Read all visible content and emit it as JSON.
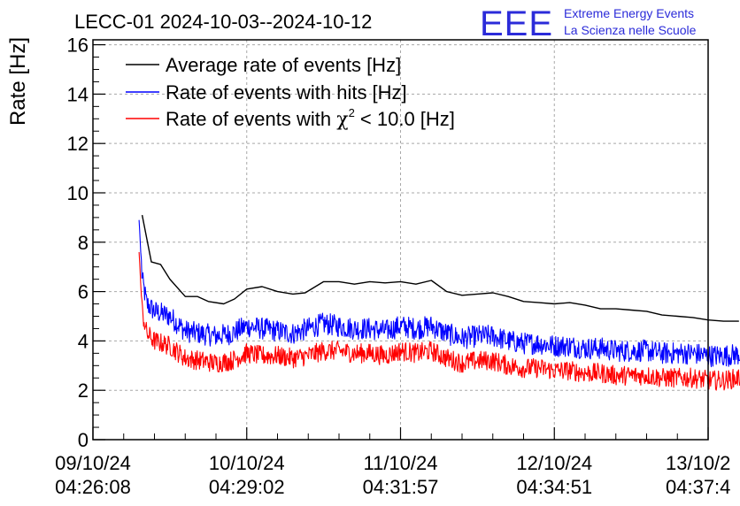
{
  "chart_data": {
    "type": "line",
    "title": "LECC-01 2024-10-03--2024-10-12",
    "logo": {
      "letters": "EEE",
      "line1": "Extreme Energy Events",
      "line2": "La Scienza nelle Scuole"
    },
    "ylabel": "Rate [Hz]",
    "xlabel": "",
    "ylim": [
      0,
      16.2
    ],
    "yticks": [
      0,
      2,
      4,
      6,
      8,
      10,
      12,
      14,
      16
    ],
    "xlim": [
      0,
      4
    ],
    "xticks": [
      {
        "x": 0,
        "line1": "09/10/24",
        "line2": "04:26:08"
      },
      {
        "x": 1,
        "line1": "10/10/24",
        "line2": "04:29:02"
      },
      {
        "x": 2,
        "line1": "11/10/24",
        "line2": "04:31:57"
      },
      {
        "x": 3,
        "line1": "12/10/24",
        "line2": "04:34:51"
      },
      {
        "x": 4,
        "line1": "13/10/2",
        "line2": "04:37:4"
      }
    ],
    "grid": true,
    "legend_position": "top-left",
    "series": [
      {
        "name": "Average rate of events [Hz]",
        "color": "#000000",
        "noise": 0,
        "points": [
          [
            0.32,
            9.1
          ],
          [
            0.38,
            7.2
          ],
          [
            0.44,
            7.1
          ],
          [
            0.5,
            6.5
          ],
          [
            0.6,
            5.8
          ],
          [
            0.68,
            5.8
          ],
          [
            0.75,
            5.6
          ],
          [
            0.85,
            5.5
          ],
          [
            0.92,
            5.7
          ],
          [
            1.0,
            6.1
          ],
          [
            1.1,
            6.2
          ],
          [
            1.2,
            6.0
          ],
          [
            1.3,
            5.9
          ],
          [
            1.38,
            5.95
          ],
          [
            1.5,
            6.4
          ],
          [
            1.6,
            6.4
          ],
          [
            1.7,
            6.3
          ],
          [
            1.8,
            6.4
          ],
          [
            1.9,
            6.35
          ],
          [
            2.0,
            6.4
          ],
          [
            2.1,
            6.3
          ],
          [
            2.2,
            6.45
          ],
          [
            2.3,
            6.0
          ],
          [
            2.4,
            5.85
          ],
          [
            2.5,
            5.9
          ],
          [
            2.6,
            5.95
          ],
          [
            2.7,
            5.8
          ],
          [
            2.8,
            5.6
          ],
          [
            2.9,
            5.55
          ],
          [
            3.0,
            5.5
          ],
          [
            3.1,
            5.55
          ],
          [
            3.2,
            5.45
          ],
          [
            3.3,
            5.3
          ],
          [
            3.4,
            5.3
          ],
          [
            3.5,
            5.25
          ],
          [
            3.6,
            5.2
          ],
          [
            3.7,
            5.05
          ],
          [
            3.8,
            5.0
          ],
          [
            3.9,
            4.95
          ],
          [
            4.0,
            4.85
          ],
          [
            4.1,
            4.8
          ],
          [
            4.2,
            4.8
          ]
        ],
        "legend": "Average rate of events [Hz]"
      },
      {
        "name": "Rate of events with hits [Hz]",
        "color": "#0000ff",
        "noise": 0.45,
        "points": [
          [
            0.3,
            8.9
          ],
          [
            0.32,
            6.5
          ],
          [
            0.35,
            5.5
          ],
          [
            0.4,
            5.2
          ],
          [
            0.5,
            5.0
          ],
          [
            0.6,
            4.4
          ],
          [
            0.7,
            4.3
          ],
          [
            0.8,
            4.2
          ],
          [
            0.9,
            4.3
          ],
          [
            1.0,
            4.6
          ],
          [
            1.1,
            4.5
          ],
          [
            1.2,
            4.4
          ],
          [
            1.3,
            4.3
          ],
          [
            1.4,
            4.5
          ],
          [
            1.5,
            4.7
          ],
          [
            1.6,
            4.6
          ],
          [
            1.7,
            4.5
          ],
          [
            1.8,
            4.5
          ],
          [
            1.9,
            4.4
          ],
          [
            2.0,
            4.6
          ],
          [
            2.1,
            4.5
          ],
          [
            2.2,
            4.6
          ],
          [
            2.3,
            4.3
          ],
          [
            2.4,
            4.1
          ],
          [
            2.5,
            4.2
          ],
          [
            2.6,
            4.2
          ],
          [
            2.7,
            4.0
          ],
          [
            2.8,
            3.9
          ],
          [
            2.9,
            3.9
          ],
          [
            3.0,
            3.8
          ],
          [
            3.1,
            3.8
          ],
          [
            3.2,
            3.7
          ],
          [
            3.3,
            3.7
          ],
          [
            3.4,
            3.6
          ],
          [
            3.5,
            3.6
          ],
          [
            3.6,
            3.6
          ],
          [
            3.7,
            3.5
          ],
          [
            3.8,
            3.5
          ],
          [
            3.9,
            3.5
          ],
          [
            4.0,
            3.4
          ],
          [
            4.1,
            3.4
          ],
          [
            4.3,
            3.5
          ]
        ],
        "legend": "Rate of events with hits [Hz]"
      },
      {
        "name": "Rate of events with χ² < 10.0 [Hz]",
        "color": "#ff0000",
        "noise": 0.4,
        "points": [
          [
            0.3,
            7.6
          ],
          [
            0.32,
            5.2
          ],
          [
            0.35,
            4.3
          ],
          [
            0.4,
            4.0
          ],
          [
            0.5,
            3.8
          ],
          [
            0.6,
            3.3
          ],
          [
            0.7,
            3.2
          ],
          [
            0.8,
            3.1
          ],
          [
            0.9,
            3.2
          ],
          [
            1.0,
            3.5
          ],
          [
            1.1,
            3.4
          ],
          [
            1.2,
            3.4
          ],
          [
            1.3,
            3.3
          ],
          [
            1.4,
            3.4
          ],
          [
            1.5,
            3.6
          ],
          [
            1.6,
            3.6
          ],
          [
            1.7,
            3.5
          ],
          [
            1.8,
            3.5
          ],
          [
            1.9,
            3.4
          ],
          [
            2.0,
            3.6
          ],
          [
            2.1,
            3.5
          ],
          [
            2.2,
            3.6
          ],
          [
            2.3,
            3.3
          ],
          [
            2.4,
            3.1
          ],
          [
            2.5,
            3.2
          ],
          [
            2.6,
            3.2
          ],
          [
            2.7,
            3.0
          ],
          [
            2.8,
            2.9
          ],
          [
            2.9,
            2.9
          ],
          [
            3.0,
            2.8
          ],
          [
            3.1,
            2.8
          ],
          [
            3.2,
            2.7
          ],
          [
            3.3,
            2.7
          ],
          [
            3.4,
            2.6
          ],
          [
            3.5,
            2.6
          ],
          [
            3.6,
            2.6
          ],
          [
            3.7,
            2.5
          ],
          [
            3.8,
            2.5
          ],
          [
            3.9,
            2.5
          ],
          [
            4.0,
            2.4
          ],
          [
            4.1,
            2.4
          ],
          [
            4.3,
            2.6
          ]
        ],
        "legend_prefix": "Rate of events with ",
        "legend_chi": "χ",
        "legend_sup": "2",
        "legend_suffix": " < 10.0 [Hz]"
      }
    ]
  }
}
